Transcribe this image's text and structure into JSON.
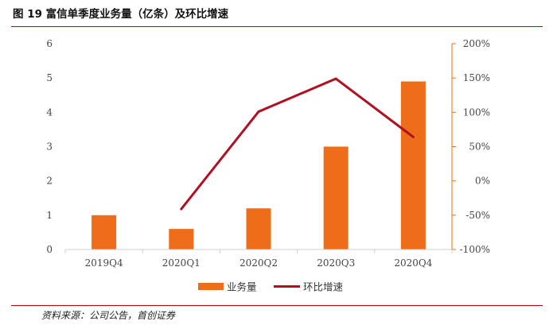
{
  "figure_title": "图 19 富信单季度业务量（亿条）及环比增速",
  "source_note": "资料来源：公司公告，首创证券",
  "colors": {
    "bar": "#ee6d1a",
    "line": "#b01020",
    "rule": "#c00000",
    "axis": "#d0d0d0"
  },
  "chart_data": {
    "type": "bar",
    "title": "富信单季度业务量（亿条）及环比增速",
    "categories": [
      "2019Q4",
      "2020Q1",
      "2020Q2",
      "2020Q3",
      "2020Q4"
    ],
    "series": [
      {
        "name": "业务量",
        "type": "bar",
        "axis": "left",
        "values": [
          1.0,
          0.6,
          1.2,
          3.0,
          4.9
        ]
      },
      {
        "name": "环比增速",
        "type": "line",
        "axis": "right",
        "values": [
          null,
          -41,
          101,
          149,
          64
        ]
      }
    ],
    "left_axis": {
      "min": 0,
      "max": 6,
      "step": 1,
      "tick_labels": [
        "0",
        "1",
        "2",
        "3",
        "4",
        "5",
        "6"
      ]
    },
    "right_axis": {
      "min": -100,
      "max": 200,
      "step": 50,
      "tick_labels": [
        "-100%",
        "-50%",
        "0%",
        "50%",
        "100%",
        "150%",
        "200%"
      ]
    },
    "legend": {
      "position": "bottom",
      "items": [
        "业务量",
        "环比增速"
      ]
    },
    "grid": false
  }
}
